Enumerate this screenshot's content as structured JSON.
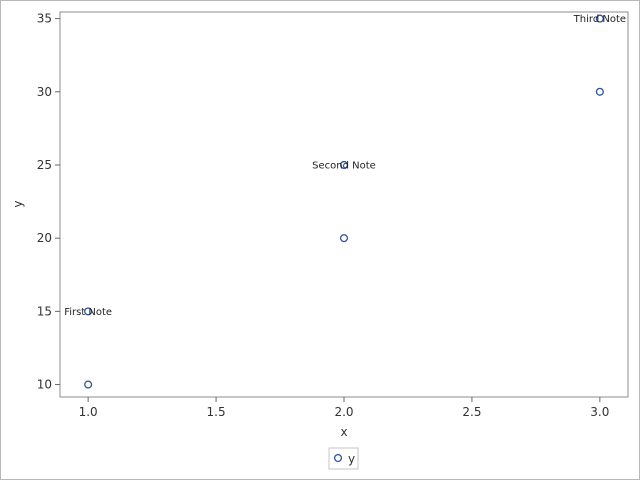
{
  "chart_data": {
    "type": "scatter",
    "xlabel": "x",
    "ylabel": "y",
    "xlim": [
      0.89,
      3.11
    ],
    "ylim": [
      9.15,
      35.45
    ],
    "xticks": [
      "1.0",
      "1.5",
      "2.0",
      "2.5",
      "3.0"
    ],
    "xtick_values": [
      1.0,
      1.5,
      2.0,
      2.5,
      3.0
    ],
    "yticks": [
      "10",
      "15",
      "20",
      "25",
      "30",
      "35"
    ],
    "ytick_values": [
      10,
      15,
      20,
      25,
      30,
      35
    ],
    "grid": false,
    "legend_position": "bottom-center",
    "series": [
      {
        "name": "y",
        "marker": "open-circle",
        "color": "#2a5599",
        "points": [
          {
            "x": 1.0,
            "y": 10
          },
          {
            "x": 1.0,
            "y": 15
          },
          {
            "x": 2.0,
            "y": 20
          },
          {
            "x": 2.0,
            "y": 25
          },
          {
            "x": 3.0,
            "y": 30
          },
          {
            "x": 3.0,
            "y": 35
          }
        ]
      }
    ],
    "annotations": [
      {
        "text": "First Note",
        "x": 1.0,
        "y": 15
      },
      {
        "text": "Second Note",
        "x": 2.0,
        "y": 25
      },
      {
        "text": "Third Note",
        "x": 3.0,
        "y": 35
      }
    ]
  }
}
